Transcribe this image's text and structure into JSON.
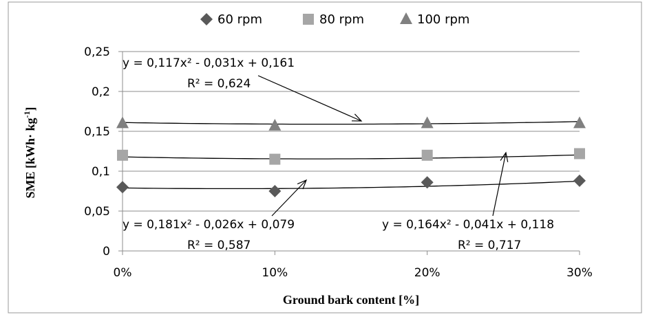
{
  "chart_data": {
    "type": "scatter",
    "categories": [
      "0%",
      "10%",
      "20%",
      "30%"
    ],
    "x": [
      0,
      10,
      20,
      30
    ],
    "series": [
      {
        "name": "60 rpm",
        "marker": "diamond",
        "color": "#595959",
        "values": [
          0.08,
          0.075,
          0.086,
          0.088
        ]
      },
      {
        "name": "80 rpm",
        "marker": "square",
        "color": "#a6a6a6",
        "values": [
          0.12,
          0.115,
          0.12,
          0.122
        ]
      },
      {
        "name": "100 rpm",
        "marker": "triangle",
        "color": "#808080",
        "values": [
          0.16,
          0.157,
          0.16,
          0.16
        ]
      }
    ],
    "trendlines": [
      {
        "series": "60 rpm",
        "a": 0.181,
        "b": -0.026,
        "c": 0.079,
        "equation": "y = 0,181x² - 0,026x + 0,079",
        "r2": "R² = 0,587"
      },
      {
        "series": "80 rpm",
        "a": 0.164,
        "b": -0.041,
        "c": 0.118,
        "equation": "y = 0,164x² - 0,041x + 0,118",
        "r2": "R² = 0,717"
      },
      {
        "series": "100 rpm",
        "a": 0.117,
        "b": -0.031,
        "c": 0.161,
        "equation": "y = 0,117x² - 0,031x + 0,161",
        "r2": "R² = 0,624"
      }
    ],
    "ylim": [
      0,
      0.25
    ],
    "yticks": [
      0,
      0.05,
      0.1,
      0.15,
      0.2,
      0.25
    ],
    "ytick_labels": [
      "0",
      "0,05",
      "0,1",
      "0,15",
      "0,2",
      "0,25"
    ],
    "xlabel": "Ground  bark  content  [%]",
    "ylabel": "SME [kWh· kg-1]",
    "ylabel_main": "SME [kWh· kg",
    "ylabel_sup": "-1",
    "ylabel_end": "]",
    "grid": true,
    "legend_position": "top"
  }
}
